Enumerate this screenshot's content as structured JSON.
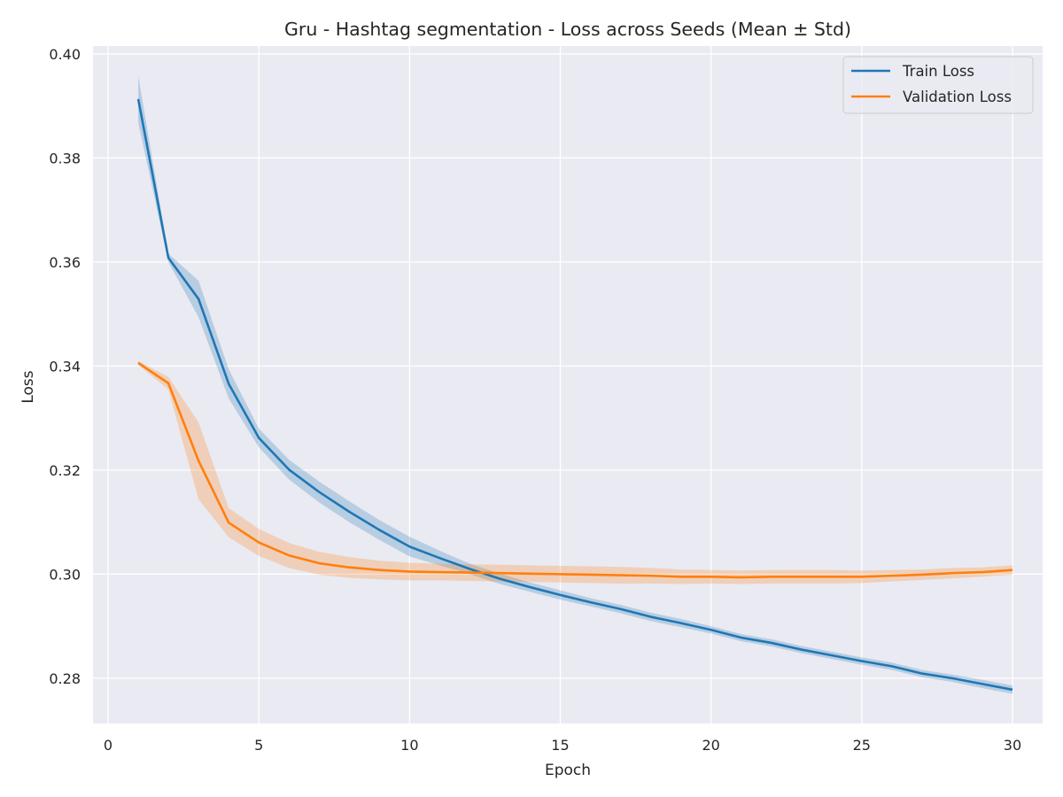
{
  "chart_data": {
    "type": "line",
    "title": "Gru - Hashtag segmentation - Loss across Seeds (Mean ± Std)",
    "xlabel": "Epoch",
    "ylabel": "Loss",
    "xlim": [
      -0.5,
      31.0
    ],
    "ylim": [
      0.2713,
      0.4015
    ],
    "xticks": [
      0,
      5,
      10,
      15,
      20,
      25,
      30
    ],
    "xtick_labels": [
      "0",
      "5",
      "10",
      "15",
      "20",
      "25",
      "30"
    ],
    "yticks": [
      0.28,
      0.3,
      0.32,
      0.34,
      0.36,
      0.38,
      0.4
    ],
    "ytick_labels": [
      "0.28",
      "0.30",
      "0.32",
      "0.34",
      "0.36",
      "0.38",
      "0.40"
    ],
    "grid": true,
    "legend_position": "top-right",
    "x": [
      1,
      2,
      3,
      4,
      5,
      6,
      7,
      8,
      9,
      10,
      11,
      12,
      13,
      14,
      15,
      16,
      17,
      18,
      19,
      20,
      21,
      22,
      23,
      24,
      25,
      26,
      27,
      28,
      29,
      30
    ],
    "series": [
      {
        "name": "Train Loss",
        "color": "#1f77b4",
        "mean": [
          0.3913,
          0.3608,
          0.3529,
          0.3366,
          0.3262,
          0.3201,
          0.3158,
          0.312,
          0.3085,
          0.3053,
          0.3031,
          0.301,
          0.2991,
          0.2975,
          0.296,
          0.2946,
          0.2933,
          0.2918,
          0.2906,
          0.2893,
          0.2878,
          0.2868,
          0.2855,
          0.2844,
          0.2833,
          0.2823,
          0.2809,
          0.28,
          0.2789,
          0.2778
        ],
        "std": [
          0.0045,
          0.0008,
          0.0035,
          0.0028,
          0.0018,
          0.0019,
          0.002,
          0.002,
          0.0019,
          0.0019,
          0.0014,
          0.001,
          0.001,
          0.0009,
          0.0009,
          0.0008,
          0.0008,
          0.0008,
          0.0008,
          0.0007,
          0.0007,
          0.0007,
          0.0007,
          0.0007,
          0.0007,
          0.0007,
          0.0007,
          0.0007,
          0.0008,
          0.0008
        ]
      },
      {
        "name": "Validation Loss",
        "color": "#ff7f0e",
        "mean": [
          0.3406,
          0.3367,
          0.3218,
          0.3099,
          0.3061,
          0.3036,
          0.3021,
          0.3013,
          0.3008,
          0.3005,
          0.3004,
          0.3003,
          0.3002,
          0.3001,
          0.3,
          0.2999,
          0.2998,
          0.2997,
          0.2995,
          0.2995,
          0.2994,
          0.2995,
          0.2995,
          0.2995,
          0.2995,
          0.2997,
          0.2999,
          0.3002,
          0.3004,
          0.3008
        ],
        "std": [
          0.0004,
          0.0012,
          0.0074,
          0.0028,
          0.0026,
          0.0024,
          0.0022,
          0.002,
          0.0018,
          0.0017,
          0.0016,
          0.0016,
          0.0016,
          0.0016,
          0.0016,
          0.0016,
          0.0016,
          0.0015,
          0.0014,
          0.0013,
          0.0013,
          0.0013,
          0.0013,
          0.0013,
          0.0012,
          0.0011,
          0.001,
          0.001,
          0.0009,
          0.0009
        ]
      }
    ]
  }
}
